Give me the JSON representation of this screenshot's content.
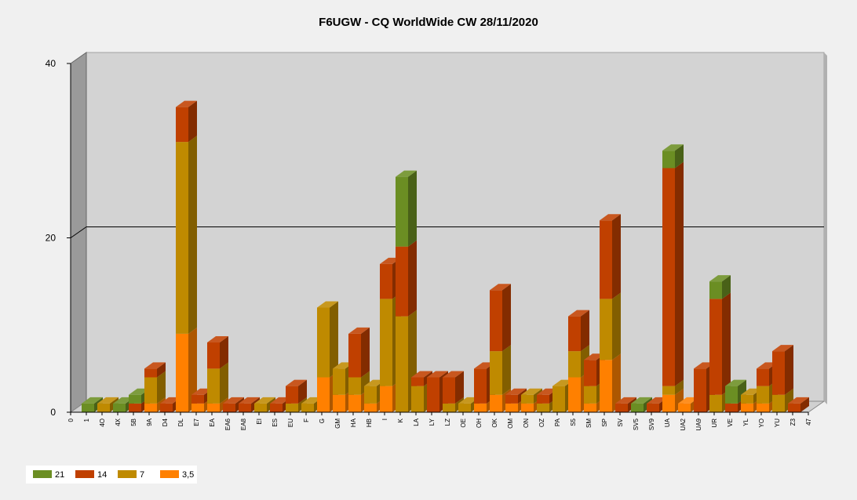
{
  "chart_data": {
    "type": "bar",
    "stacked": true,
    "three_d": true,
    "title": "F6UGW - CQ WorldWide CW 28/11/2020",
    "xlabel": "",
    "ylabel": "",
    "ylim": [
      0,
      40
    ],
    "y_ticks": [
      0,
      20,
      40
    ],
    "grid": true,
    "legend_position": "bottom-left",
    "x_edge_labels": [
      "0",
      "47"
    ],
    "categories": [
      "1",
      "4O",
      "4X",
      "5B",
      "9A",
      "D4",
      "DL",
      "E7",
      "EA",
      "EA6",
      "EA8",
      "EI",
      "ES",
      "EU",
      "F",
      "G",
      "GM",
      "HA",
      "HB",
      "I",
      "K",
      "LA",
      "LY",
      "LZ",
      "OE",
      "OH",
      "OK",
      "OM",
      "ON",
      "OZ",
      "PA",
      "S5",
      "SM",
      "SP",
      "SV",
      "SV5",
      "SV9",
      "UA",
      "UA2",
      "UA9",
      "UR",
      "VE",
      "YL",
      "YO",
      "YU",
      "Z3"
    ],
    "series": [
      {
        "name": "3,5",
        "color": "#ff8000",
        "values": [
          0,
          0,
          0,
          0,
          1,
          0,
          9,
          1,
          1,
          0,
          0,
          0,
          0,
          0,
          0,
          4,
          2,
          2,
          1,
          3,
          0,
          0,
          0,
          0,
          0,
          1,
          2,
          1,
          1,
          0,
          0,
          4,
          1,
          6,
          0,
          0,
          0,
          2,
          1,
          0,
          0,
          0,
          1,
          1,
          0,
          0
        ]
      },
      {
        "name": "7",
        "color": "#bf8a00",
        "values": [
          0,
          1,
          0,
          0,
          3,
          0,
          22,
          0,
          4,
          0,
          0,
          1,
          0,
          1,
          1,
          8,
          3,
          2,
          2,
          10,
          11,
          3,
          0,
          1,
          1,
          0,
          5,
          0,
          1,
          1,
          3,
          3,
          2,
          7,
          0,
          0,
          0,
          1,
          0,
          0,
          2,
          0,
          1,
          2,
          2,
          0
        ]
      },
      {
        "name": "14",
        "color": "#c04000",
        "values": [
          0,
          0,
          0,
          1,
          1,
          1,
          4,
          1,
          3,
          1,
          1,
          0,
          1,
          2,
          0,
          0,
          0,
          5,
          0,
          4,
          8,
          1,
          4,
          3,
          0,
          4,
          7,
          1,
          0,
          1,
          0,
          4,
          3,
          9,
          1,
          0,
          1,
          25,
          0,
          5,
          11,
          1,
          0,
          2,
          5,
          1
        ]
      },
      {
        "name": "21",
        "color": "#6b8e23",
        "values": [
          1,
          0,
          1,
          1,
          0,
          0,
          0,
          0,
          0,
          0,
          0,
          0,
          0,
          0,
          0,
          0,
          0,
          0,
          0,
          0,
          8,
          0,
          0,
          0,
          0,
          0,
          0,
          0,
          0,
          0,
          0,
          0,
          0,
          0,
          0,
          1,
          0,
          2,
          0,
          0,
          2,
          2,
          0,
          0,
          0,
          0
        ]
      }
    ],
    "legend_order": [
      "21",
      "14",
      "7",
      "3,5"
    ]
  }
}
